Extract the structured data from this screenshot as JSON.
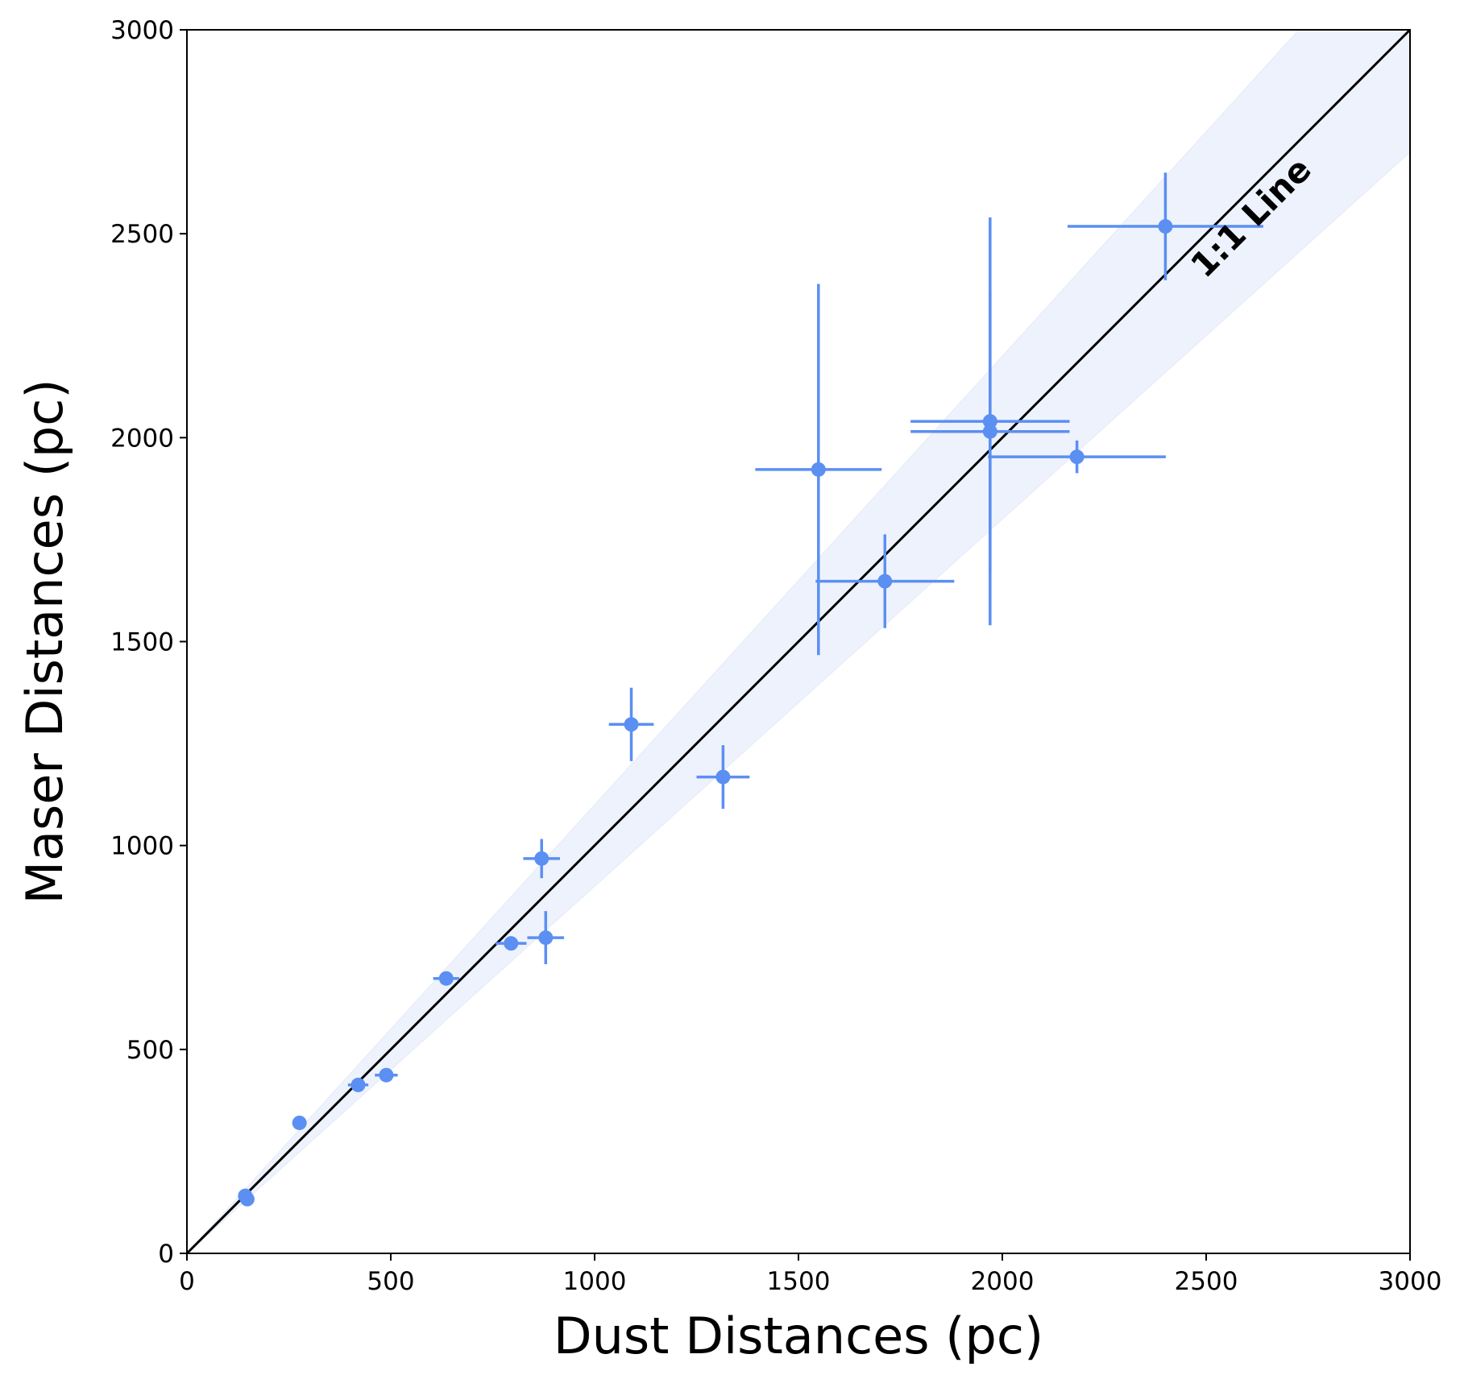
{
  "chart_data": {
    "type": "scatter",
    "title": "",
    "xlabel": "Dust Distances (pc)",
    "ylabel": "Maser Distances (pc)",
    "xlim": [
      0,
      3000
    ],
    "ylim": [
      0,
      3000
    ],
    "xticks": [
      0,
      500,
      1000,
      1500,
      2000,
      2500,
      3000
    ],
    "yticks": [
      0,
      500,
      1000,
      1500,
      2000,
      2500,
      3000
    ],
    "xtick_labels": [
      "0",
      "500",
      "1000",
      "1500",
      "2000",
      "2500",
      "3000"
    ],
    "ytick_labels": [
      "0",
      "500",
      "1000",
      "1500",
      "2000",
      "2500",
      "3000"
    ],
    "grid": false,
    "colors": {
      "points": "#5b8ff2",
      "band": "#eef2fc",
      "line": "#000000"
    },
    "reference_line": {
      "label": "1:1 Line",
      "slope": 1,
      "intercept": 0
    },
    "band": {
      "upper_slope": 1.1,
      "lower_slope": 0.9
    },
    "points": [
      {
        "x": 143,
        "y": 141,
        "xerr": 5,
        "yerr": 3
      },
      {
        "x": 148,
        "y": 133,
        "xerr": 5,
        "yerr": 3
      },
      {
        "x": 276,
        "y": 320,
        "xerr": 10,
        "yerr": 8
      },
      {
        "x": 420,
        "y": 413,
        "xerr": 25,
        "yerr": 8
      },
      {
        "x": 489,
        "y": 437,
        "xerr": 28,
        "yerr": 10
      },
      {
        "x": 636,
        "y": 674,
        "xerr": 32,
        "yerr": 10
      },
      {
        "x": 795,
        "y": 760,
        "xerr": 38,
        "yerr": 15
      },
      {
        "x": 870,
        "y": 968,
        "xerr": 45,
        "yerr": 48
      },
      {
        "x": 880,
        "y": 774,
        "xerr": 45,
        "yerr": 65
      },
      {
        "x": 1090,
        "y": 1297,
        "xerr": 55,
        "yerr": 90
      },
      {
        "x": 1315,
        "y": 1168,
        "xerr": 65,
        "yerr": 78
      },
      {
        "x": 1549,
        "y": 1922,
        "xerr": 155,
        "yerr": 455
      },
      {
        "x": 1712,
        "y": 1648,
        "xerr": 170,
        "yerr": 115
      },
      {
        "x": 1970,
        "y": 2040,
        "xerr": 195,
        "yerr": 500
      },
      {
        "x": 1970,
        "y": 2015,
        "xerr": 195,
        "yerr": 345
      },
      {
        "x": 2183,
        "y": 1953,
        "xerr": 218,
        "yerr": 40
      },
      {
        "x": 2400,
        "y": 2518,
        "xerr": 240,
        "yerr": 132
      }
    ]
  }
}
